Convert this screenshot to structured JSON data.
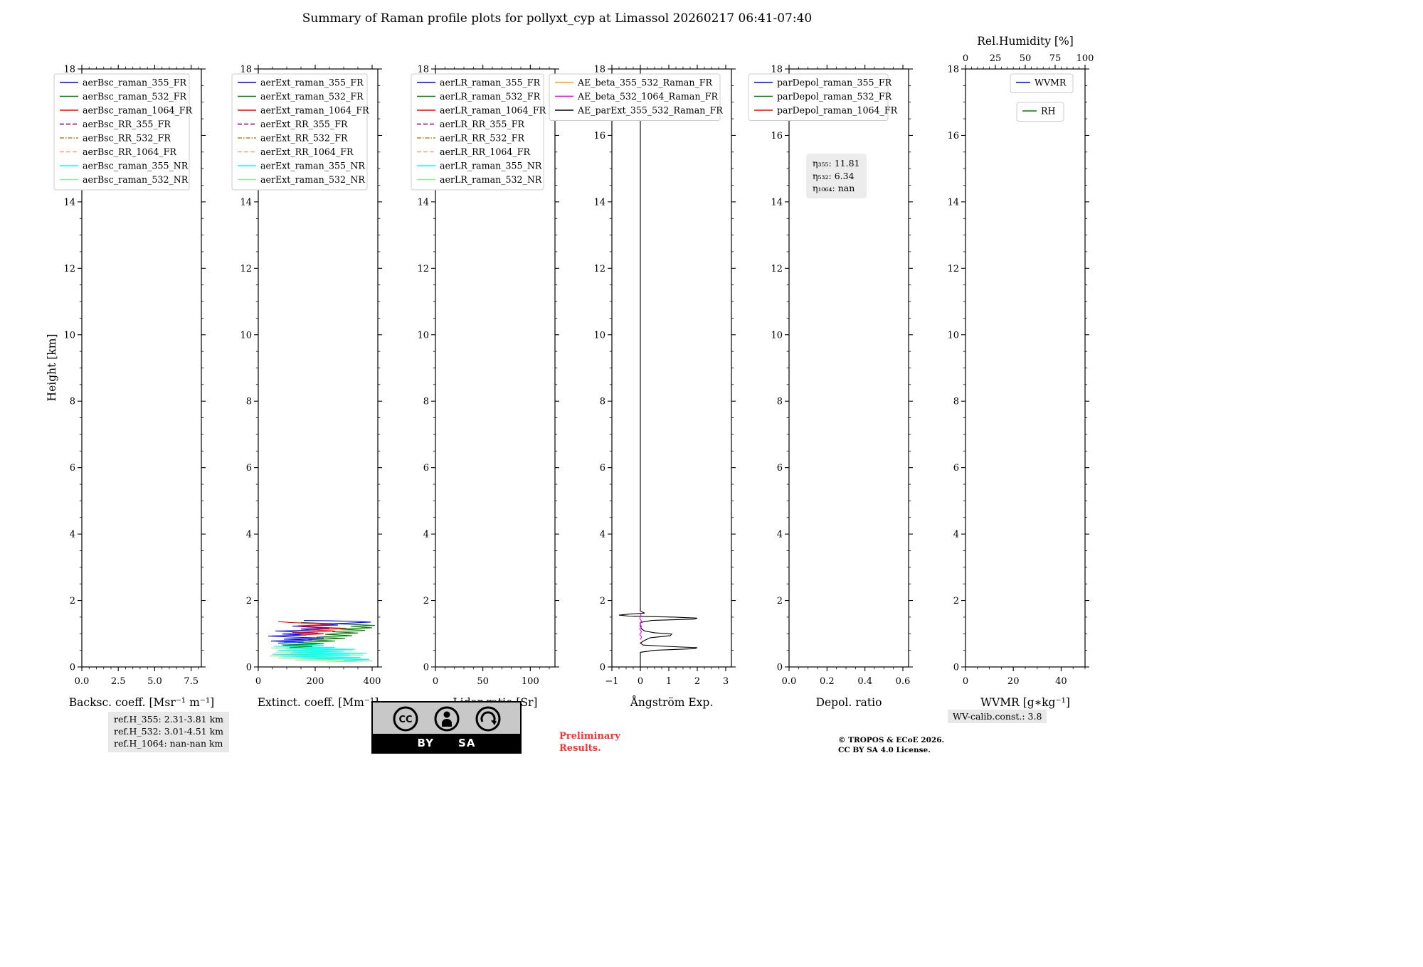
{
  "title": "Summary of Raman profile plots for pollyxt_cyp at Limassol 20260217 06:41-07:40",
  "chart_data": {
    "type": "line",
    "ylabel": "Height [km]",
    "ylim": [
      0,
      18
    ],
    "yticks": [
      0,
      2,
      4,
      6,
      8,
      10,
      12,
      14,
      16,
      18
    ],
    "ytick_labels": [
      "0",
      "2",
      "4",
      "6",
      "8",
      "10",
      "12",
      "14",
      "16",
      "18"
    ],
    "y_minor_step": 0.5,
    "grid": false,
    "legend_position": "upper left",
    "panels": [
      {
        "xlabel": "Backsc. coeff. [Msr⁻¹ m⁻¹]",
        "xlim": [
          0,
          8.2
        ],
        "xticks": [
          0,
          2.5,
          5,
          7.5
        ],
        "xtick_labels": [
          "0.0",
          "2.5",
          "5.0",
          "7.5"
        ],
        "x_minor_step": 0.5,
        "legend": [
          {
            "label": "aerBsc_raman_355_FR",
            "color": "#0000ff",
            "dash": "solid"
          },
          {
            "label": "aerBsc_raman_532_FR",
            "color": "#008000",
            "dash": "solid"
          },
          {
            "label": "aerBsc_raman_1064_FR",
            "color": "#ff0000",
            "dash": "solid"
          },
          {
            "label": "aerBsc_RR_355_FR",
            "color": "#800080",
            "dash": "dashed"
          },
          {
            "label": "aerBsc_RR_532_FR",
            "color": "#b8860b",
            "dash": "dashdot"
          },
          {
            "label": "aerBsc_RR_1064_FR",
            "color": "#ff9e80",
            "dash": "dashed"
          },
          {
            "label": "aerBsc_raman_355_NR",
            "color": "#00ffff",
            "dash": "solid"
          },
          {
            "label": "aerBsc_raman_532_NR",
            "color": "#90ee90",
            "dash": "solid"
          }
        ],
        "series": []
      },
      {
        "xlabel": "Extinct. coeff. [Mm⁻¹]",
        "xlim": [
          0,
          420
        ],
        "xticks": [
          0,
          200,
          400
        ],
        "xtick_labels": [
          "0",
          "200",
          "400"
        ],
        "x_minor_step": 50,
        "legend": [
          {
            "label": "aerExt_raman_355_FR",
            "color": "#0000ff",
            "dash": "solid"
          },
          {
            "label": "aerExt_raman_532_FR",
            "color": "#008000",
            "dash": "solid"
          },
          {
            "label": "aerExt_raman_1064_FR",
            "color": "#ff0000",
            "dash": "solid"
          },
          {
            "label": "aerExt_RR_355_FR",
            "color": "#800080",
            "dash": "dashed"
          },
          {
            "label": "aerExt_RR_532_FR",
            "color": "#b8860b",
            "dash": "dashdot"
          },
          {
            "label": "aerExt_RR_1064_FR",
            "color": "#ff9e80",
            "dash": "dashed"
          },
          {
            "label": "aerExt_raman_355_NR",
            "color": "#00ffff",
            "dash": "solid"
          },
          {
            "label": "aerExt_raman_532_NR",
            "color": "#90ee90",
            "dash": "solid"
          }
        ],
        "series": [
          {
            "name": "aerExt_raman_532_NR",
            "color": "#90ee90",
            "points": [
              [
                240,
                0.15
              ],
              [
                400,
                0.18
              ],
              [
                130,
                0.21
              ],
              [
                350,
                0.24
              ],
              [
                70,
                0.27
              ],
              [
                310,
                0.3
              ],
              [
                40,
                0.33
              ],
              [
                370,
                0.36
              ],
              [
                110,
                0.39
              ],
              [
                290,
                0.42
              ],
              [
                60,
                0.45
              ],
              [
                330,
                0.48
              ],
              [
                90,
                0.51
              ],
              [
                260,
                0.54
              ],
              [
                45,
                0.57
              ],
              [
                220,
                0.6
              ],
              [
                120,
                0.63
              ],
              [
                180,
                0.66
              ],
              [
                80,
                0.68
              ]
            ]
          },
          {
            "name": "aerExt_raman_355_NR",
            "color": "#00ffff",
            "points": [
              [
                300,
                0.2
              ],
              [
                390,
                0.23
              ],
              [
                150,
                0.26
              ],
              [
                360,
                0.29
              ],
              [
                80,
                0.32
              ],
              [
                320,
                0.35
              ],
              [
                50,
                0.38
              ],
              [
                380,
                0.41
              ],
              [
                120,
                0.44
              ],
              [
                300,
                0.47
              ],
              [
                70,
                0.5
              ],
              [
                340,
                0.53
              ],
              [
                100,
                0.56
              ],
              [
                270,
                0.59
              ],
              [
                55,
                0.62
              ],
              [
                230,
                0.65
              ],
              [
                140,
                0.68
              ],
              [
                190,
                0.71
              ],
              [
                90,
                0.74
              ],
              [
                160,
                0.76
              ]
            ]
          },
          {
            "name": "aerExt_raman_532_FR",
            "color": "#008000",
            "points": [
              [
                110,
                0.58
              ],
              [
                190,
                0.62
              ],
              [
                85,
                0.66
              ],
              [
                230,
                0.7
              ],
              [
                140,
                0.74
              ],
              [
                270,
                0.78
              ],
              [
                175,
                0.82
              ],
              [
                305,
                0.86
              ],
              [
                205,
                0.9
              ],
              [
                330,
                0.94
              ],
              [
                235,
                0.98
              ],
              [
                350,
                1.02
              ],
              [
                260,
                1.06
              ],
              [
                375,
                1.1
              ],
              [
                285,
                1.14
              ],
              [
                400,
                1.18
              ],
              [
                325,
                1.22
              ],
              [
                410,
                1.25
              ],
              [
                330,
                1.28
              ],
              [
                240,
                1.31
              ],
              [
                150,
                1.34
              ]
            ]
          },
          {
            "name": "aerExt_raman_355_FR",
            "color": "#0000ff",
            "points": [
              [
                70,
                0.72
              ],
              [
                160,
                0.75
              ],
              [
                45,
                0.78
              ],
              [
                190,
                0.81
              ],
              [
                90,
                0.84
              ],
              [
                230,
                0.87
              ],
              [
                120,
                0.9
              ],
              [
                35,
                0.93
              ],
              [
                170,
                0.96
              ],
              [
                85,
                0.99
              ],
              [
                210,
                1.02
              ],
              [
                140,
                1.05
              ],
              [
                60,
                1.08
              ],
              [
                200,
                1.11
              ],
              [
                150,
                1.14
              ],
              [
                250,
                1.17
              ],
              [
                180,
                1.2
              ],
              [
                120,
                1.23
              ],
              [
                280,
                1.26
              ],
              [
                220,
                1.29
              ],
              [
                320,
                1.32
              ],
              [
                395,
                1.35
              ],
              [
                340,
                1.37
              ],
              [
                250,
                1.39
              ],
              [
                160,
                1.4
              ]
            ]
          },
          {
            "name": "aerExt_raman_1064_FR",
            "color": "#ff0000",
            "points": [
              [
                150,
                0.96
              ],
              [
                230,
                1.0
              ],
              [
                120,
                1.04
              ],
              [
                270,
                1.08
              ],
              [
                175,
                1.12
              ],
              [
                310,
                1.16
              ],
              [
                205,
                1.2
              ],
              [
                140,
                1.24
              ],
              [
                260,
                1.28
              ],
              [
                195,
                1.31
              ],
              [
                110,
                1.34
              ],
              [
                70,
                1.37
              ]
            ]
          }
        ]
      },
      {
        "xlabel": "Lidar ratio [Sr]",
        "xlim": [
          0,
          126
        ],
        "xticks": [
          0,
          50,
          100
        ],
        "xtick_labels": [
          "0",
          "50",
          "100"
        ],
        "x_minor_step": 10,
        "legend": [
          {
            "label": "aerLR_raman_355_FR",
            "color": "#0000ff",
            "dash": "solid"
          },
          {
            "label": "aerLR_raman_532_FR",
            "color": "#008000",
            "dash": "solid"
          },
          {
            "label": "aerLR_raman_1064_FR",
            "color": "#ff0000",
            "dash": "solid"
          },
          {
            "label": "aerLR_RR_355_FR",
            "color": "#800080",
            "dash": "dashed"
          },
          {
            "label": "aerLR_RR_532_FR",
            "color": "#b8860b",
            "dash": "dashdot"
          },
          {
            "label": "aerLR_RR_1064_FR",
            "color": "#ff9e80",
            "dash": "dashed"
          },
          {
            "label": "aerLR_raman_355_NR",
            "color": "#00ffff",
            "dash": "solid"
          },
          {
            "label": "aerLR_raman_532_NR",
            "color": "#90ee90",
            "dash": "solid"
          }
        ],
        "series": []
      },
      {
        "xlabel": "Ångström Exp.",
        "xlim": [
          -1,
          3.2
        ],
        "xticks": [
          -1,
          0,
          1,
          2,
          3
        ],
        "xtick_labels": [
          "−1",
          "0",
          "1",
          "2",
          "3"
        ],
        "x_minor_step": 0.25,
        "legend": [
          {
            "label": "AE_beta_355_532_Raman_FR",
            "color": "#ffa500",
            "dash": "solid"
          },
          {
            "label": "AE_beta_532_1064_Raman_FR",
            "color": "#ff00ff",
            "dash": "solid"
          },
          {
            "label": "AE_parExt_355_532_Raman_FR",
            "color": "#000000",
            "dash": "solid"
          }
        ],
        "series": [
          {
            "name": "AE_parExt_355_532_Raman_FR",
            "color": "#000000",
            "points": [
              [
                0,
                0
              ],
              [
                0,
                0.44
              ],
              [
                0.5,
                0.5
              ],
              [
                1.9,
                0.55
              ],
              [
                2.0,
                0.58
              ],
              [
                0.9,
                0.62
              ],
              [
                0.1,
                0.66
              ],
              [
                0,
                0.72
              ],
              [
                0.15,
                0.8
              ],
              [
                0.35,
                0.88
              ],
              [
                1.05,
                0.94
              ],
              [
                1.1,
                0.99
              ],
              [
                0.5,
                1.03
              ],
              [
                0.15,
                1.08
              ],
              [
                0.05,
                1.14
              ],
              [
                0,
                1.22
              ],
              [
                0,
                1.34
              ],
              [
                0.4,
                1.4
              ],
              [
                1.9,
                1.44
              ],
              [
                2.0,
                1.47
              ],
              [
                1.2,
                1.5
              ],
              [
                -0.4,
                1.53
              ],
              [
                -0.75,
                1.56
              ],
              [
                -0.4,
                1.59
              ],
              [
                0.15,
                1.62
              ],
              [
                0,
                1.68
              ],
              [
                0,
                18
              ]
            ]
          },
          {
            "name": "AE_beta_532_1064_Raman_FR",
            "color": "#ff00ff",
            "points": [
              [
                0,
                0.82
              ],
              [
                0.04,
                0.9
              ],
              [
                -0.02,
                0.98
              ],
              [
                0.04,
                1.06
              ],
              [
                -0.02,
                1.14
              ],
              [
                0.04,
                1.22
              ],
              [
                -0.02,
                1.3
              ],
              [
                0.04,
                1.38
              ],
              [
                -0.02,
                1.46
              ],
              [
                0.02,
                1.54
              ],
              [
                0,
                1.6
              ]
            ]
          }
        ]
      },
      {
        "xlabel": "Depol. ratio",
        "xlim": [
          0,
          0.63
        ],
        "xticks": [
          0,
          0.2,
          0.4,
          0.6
        ],
        "xtick_labels": [
          "0.0",
          "0.2",
          "0.4",
          "0.6"
        ],
        "x_minor_step": 0.05,
        "legend": [
          {
            "label": "parDepol_raman_355_FR",
            "color": "#0000ff",
            "dash": "solid"
          },
          {
            "label": "parDepol_raman_532_FR",
            "color": "#008000",
            "dash": "solid"
          },
          {
            "label": "parDepol_raman_1064_FR",
            "color": "#ff0000",
            "dash": "solid"
          }
        ],
        "series": []
      },
      {
        "xlabel": "WVMR [g∗kg⁻¹]",
        "xlim": [
          0,
          50
        ],
        "xticks": [
          0,
          20,
          40
        ],
        "xtick_labels": [
          "0",
          "20",
          "40"
        ],
        "x_minor_step": 5,
        "top_axis": {
          "label": "Rel.Humidity [%]",
          "xlim": [
            0,
            100
          ],
          "xticks": [
            0,
            25,
            50,
            75,
            100
          ],
          "xtick_labels": [
            "0",
            "25",
            "50",
            "75",
            "100"
          ],
          "x_minor_step": 5
        },
        "legend": [
          {
            "label": "WVMR",
            "color": "#0000ff",
            "dash": "solid"
          },
          {
            "label": "RH",
            "color": "#008000",
            "dash": "solid"
          }
        ],
        "legend_split": true,
        "series": []
      }
    ]
  },
  "annotations": {
    "eta_lines": [
      "η₃₅₅: 11.81",
      "η₅₃₂: 6.34",
      "η₁₀₆₄: nan"
    ],
    "ref_lines": [
      "ref.H_355: 2.31-3.81 km",
      "ref.H_532: 3.01-4.51 km",
      "ref.H_1064: nan-nan km"
    ],
    "preliminary_line1": "Preliminary",
    "preliminary_line2": "Results.",
    "copyright_line1": "© TROPOS & ECoE 2026.",
    "copyright_line2": "CC BY SA 4.0 License.",
    "wv_calib": "WV-calib.const.: 3.8"
  },
  "cc_badge": {
    "cc_label": "CC",
    "by_label": "BY",
    "sa_label": "SA"
  }
}
